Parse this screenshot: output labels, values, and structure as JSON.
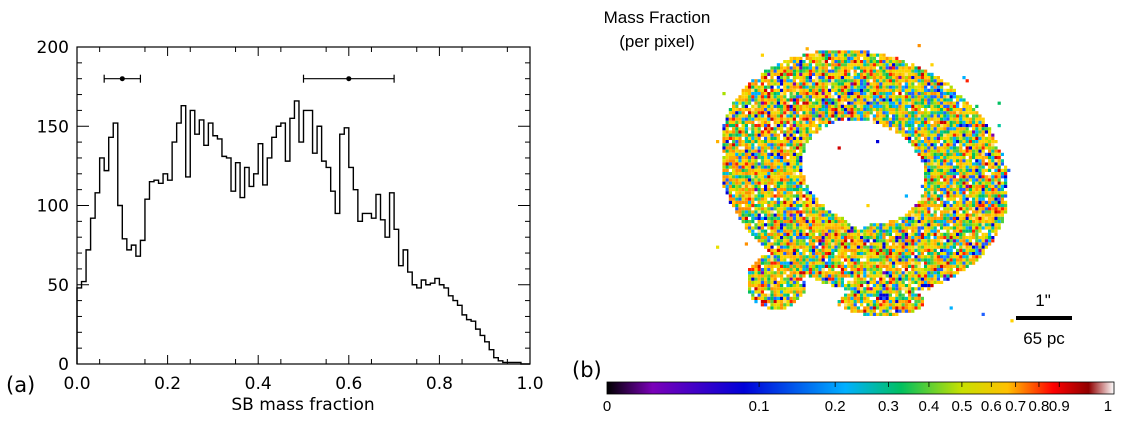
{
  "panels": {
    "a_label": "(a)",
    "b_label": "(b)"
  },
  "chart_data": [
    {
      "type": "bar",
      "subtype": "step-histogram",
      "title": "",
      "xlabel": "SB mass fraction",
      "ylabel": "",
      "xlim": [
        0.0,
        1.0
      ],
      "ylim": [
        0,
        200
      ],
      "xticks": [
        "0.0",
        "0.2",
        "0.4",
        "0.6",
        "0.8",
        "1.0"
      ],
      "yticks": [
        "0",
        "50",
        "100",
        "150",
        "200"
      ],
      "bin_width": 0.01,
      "bin_start": 0.0,
      "values": [
        48,
        52,
        72,
        92,
        108,
        130,
        122,
        143,
        152,
        100,
        79,
        72,
        75,
        68,
        78,
        104,
        115,
        116,
        114,
        120,
        116,
        140,
        152,
        163,
        118,
        160,
        145,
        154,
        138,
        152,
        144,
        142,
        131,
        130,
        109,
        127,
        105,
        124,
        112,
        120,
        139,
        113,
        130,
        143,
        150,
        152,
        128,
        155,
        166,
        140,
        160,
        160,
        133,
        150,
        128,
        124,
        109,
        95,
        145,
        149,
        124,
        110,
        90,
        95,
        95,
        92,
        107,
        91,
        80,
        108,
        85,
        62,
        72,
        58,
        50,
        48,
        53,
        50,
        51,
        54,
        50,
        48,
        43,
        40,
        37,
        31,
        28,
        27,
        22,
        18,
        14,
        9,
        4,
        2,
        1,
        1,
        1,
        1,
        0,
        0
      ],
      "error_bars": [
        {
          "x": 0.1,
          "y": 180,
          "xerr": [
            0.06,
            0.14
          ]
        },
        {
          "x": 0.6,
          "y": 180,
          "xerr": [
            0.5,
            0.7
          ]
        }
      ],
      "color": "#000000"
    },
    {
      "type": "heatmap",
      "title": "Mass Fraction",
      "subtitle": "(per pixel)",
      "colorbar": {
        "ticks": [
          "0",
          "0.1",
          "0.2",
          "0.3",
          "0.4",
          "0.5",
          "0.6",
          "0.7",
          "0.8",
          "0.9",
          "1"
        ],
        "scale": "log",
        "colors": [
          "#000000",
          "#7a00b8",
          "#0000d8",
          "#00b0ff",
          "#00c060",
          "#c8e000",
          "#ffc000",
          "#ff0000",
          "#900000",
          "#ffffff"
        ]
      },
      "scale_bar": {
        "top_label": "1\"",
        "bottom_label": "65 pc"
      }
    }
  ]
}
